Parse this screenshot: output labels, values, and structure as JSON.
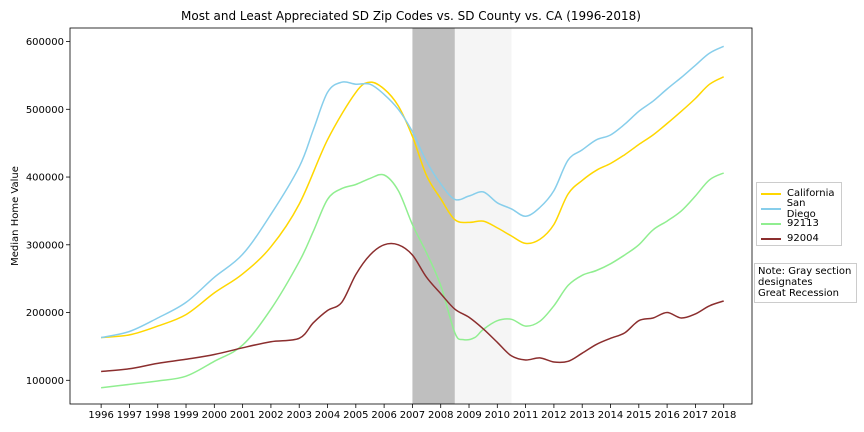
{
  "chart_data": {
    "type": "line",
    "title": "Most and Least Appreciated SD Zip Codes vs. SD County vs. CA (1996-2018)",
    "xlabel": "",
    "ylabel": "Median Home Value",
    "xlim": [
      1994.9,
      2019.0
    ],
    "ylim": [
      65000,
      620000
    ],
    "x_ticks": [
      1996,
      1997,
      1998,
      1999,
      2000,
      2001,
      2002,
      2003,
      2004,
      2005,
      2006,
      2007,
      2008,
      2009,
      2010,
      2011,
      2012,
      2013,
      2014,
      2015,
      2016,
      2017,
      2018
    ],
    "y_ticks": [
      100000,
      200000,
      300000,
      400000,
      500000,
      600000
    ],
    "grid": false,
    "legend_position": "right",
    "shaded_regions": [
      {
        "x_start": 2007.0,
        "x_end": 2008.5,
        "color": "#bfbfbf"
      },
      {
        "x_start": 2008.5,
        "x_end": 2010.5,
        "color": "#f5f5f5"
      }
    ],
    "series": [
      {
        "name": "California",
        "color": "#FFD700",
        "x": [
          1996.0,
          1997.0,
          1998.0,
          1999.0,
          2000.0,
          2001.0,
          2002.0,
          2003.0,
          2004.0,
          2005.0,
          2005.5,
          2006.0,
          2006.5,
          2007.0,
          2007.5,
          2008.0,
          2008.5,
          2009.0,
          2009.5,
          2010.0,
          2010.5,
          2011.0,
          2011.5,
          2012.0,
          2012.5,
          2013.0,
          2013.5,
          2014.0,
          2014.5,
          2015.0,
          2015.5,
          2016.0,
          2016.5,
          2017.0,
          2017.5,
          2018.0
        ],
        "values": [
          163000,
          167000,
          180000,
          197000,
          229000,
          257000,
          297000,
          360000,
          455000,
          525000,
          540000,
          530000,
          505000,
          460000,
          402000,
          368000,
          337000,
          333000,
          335000,
          325000,
          313000,
          302000,
          308000,
          330000,
          375000,
          395000,
          410000,
          420000,
          433000,
          448000,
          462000,
          479000,
          497000,
          516000,
          537000,
          548000
        ]
      },
      {
        "name": "San Diego",
        "color": "#87CEEB",
        "x": [
          1996.0,
          1997.0,
          1998.0,
          1999.0,
          2000.0,
          2001.0,
          2002.0,
          2003.0,
          2003.5,
          2004.0,
          2004.5,
          2005.0,
          2005.5,
          2006.0,
          2006.5,
          2007.0,
          2007.5,
          2008.0,
          2008.5,
          2009.0,
          2009.5,
          2010.0,
          2010.5,
          2011.0,
          2011.5,
          2012.0,
          2012.5,
          2013.0,
          2013.5,
          2014.0,
          2014.5,
          2015.0,
          2015.5,
          2016.0,
          2016.5,
          2017.0,
          2017.5,
          2018.0
        ],
        "values": [
          163000,
          172000,
          192000,
          215000,
          252000,
          286000,
          345000,
          415000,
          470000,
          525000,
          540000,
          537000,
          537000,
          522000,
          500000,
          467000,
          423000,
          390000,
          367000,
          372000,
          378000,
          362000,
          353000,
          342000,
          355000,
          380000,
          425000,
          440000,
          455000,
          462000,
          478000,
          497000,
          512000,
          530000,
          547000,
          565000,
          583000,
          593000
        ]
      },
      {
        "name": "92113",
        "color": "#90EE90",
        "x": [
          1996.0,
          1997.0,
          1998.0,
          1999.0,
          2000.0,
          2001.0,
          2002.0,
          2003.0,
          2003.5,
          2004.0,
          2004.5,
          2005.0,
          2005.5,
          2006.0,
          2006.5,
          2007.0,
          2007.5,
          2008.0,
          2008.5,
          2008.8,
          2009.2,
          2009.5,
          2010.0,
          2010.5,
          2011.0,
          2011.5,
          2012.0,
          2012.5,
          2013.0,
          2013.5,
          2014.0,
          2014.5,
          2015.0,
          2015.5,
          2016.0,
          2016.5,
          2017.0,
          2017.5,
          2018.0
        ],
        "values": [
          89000,
          94000,
          99000,
          106000,
          128000,
          152000,
          205000,
          275000,
          320000,
          367000,
          383000,
          389000,
          398000,
          403000,
          380000,
          330000,
          288000,
          240000,
          170000,
          160000,
          163000,
          175000,
          188000,
          190000,
          180000,
          187000,
          210000,
          240000,
          255000,
          262000,
          272000,
          285000,
          300000,
          322000,
          335000,
          350000,
          372000,
          396000,
          406000
        ]
      },
      {
        "name": "92004",
        "color": "#8B2E2E",
        "x": [
          1996.0,
          1997.0,
          1998.0,
          1999.0,
          2000.0,
          2001.0,
          2002.0,
          2003.0,
          2003.5,
          2004.0,
          2004.5,
          2005.0,
          2005.5,
          2006.0,
          2006.5,
          2007.0,
          2007.5,
          2008.0,
          2008.5,
          2009.0,
          2009.5,
          2010.0,
          2010.5,
          2011.0,
          2011.5,
          2012.0,
          2012.5,
          2013.0,
          2013.5,
          2014.0,
          2014.5,
          2015.0,
          2015.5,
          2016.0,
          2016.5,
          2017.0,
          2017.5,
          2018.0
        ],
        "values": [
          113000,
          117000,
          125000,
          131000,
          138000,
          148000,
          157000,
          162000,
          185000,
          203000,
          215000,
          256000,
          285000,
          300000,
          300000,
          285000,
          252000,
          228000,
          205000,
          193000,
          176000,
          156000,
          136000,
          130000,
          133000,
          127000,
          128000,
          140000,
          153000,
          162000,
          170000,
          188000,
          192000,
          200000,
          192000,
          198000,
          210000,
          217000
        ]
      }
    ]
  },
  "note": {
    "text": "Note: Gray section\ndesignates\nGreat Recession"
  }
}
